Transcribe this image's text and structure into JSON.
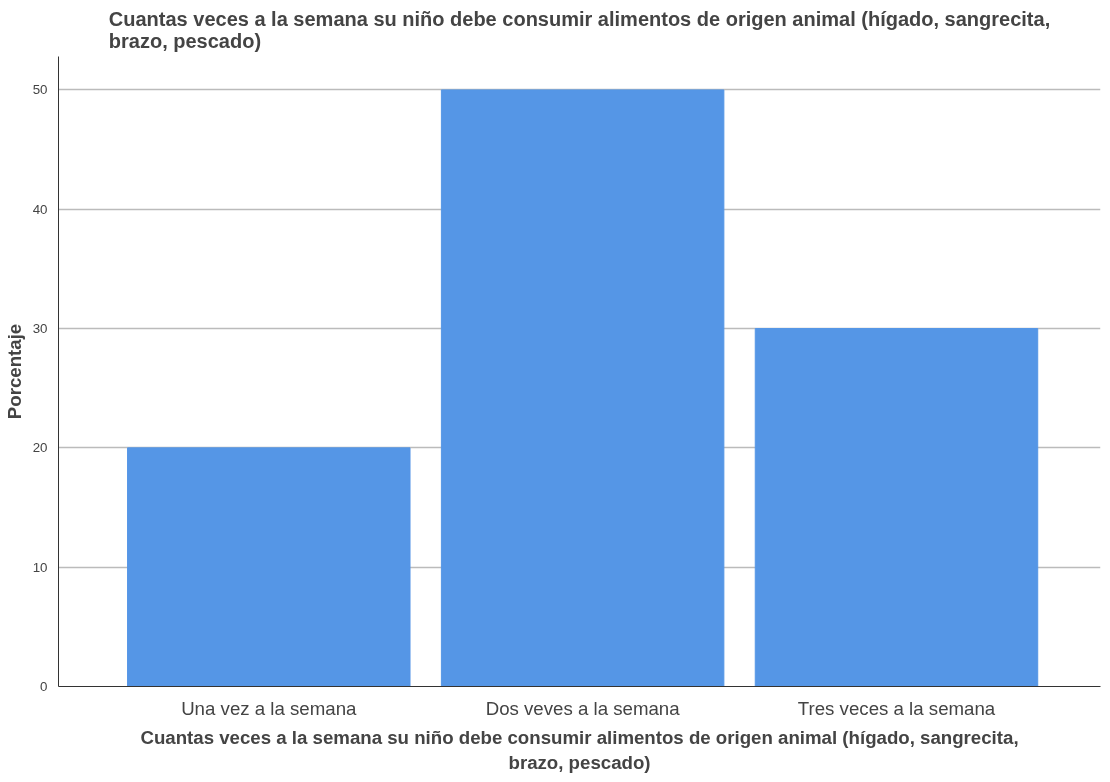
{
  "chart_data": {
    "type": "bar",
    "title": "Cuantas veces a la semana su niño debe consumir alimentos de origen animal (hígado, sangrecita, brazo, pescado)",
    "xlabel": "Cuantas veces a la semana su niño debe consumir alimentos de origen animal (hígado, sangrecita, brazo, pescado)",
    "ylabel": "Porcentaje",
    "categories": [
      "Una vez a la semana",
      "Dos veves a la semana",
      "Tres veces a la semana"
    ],
    "values": [
      20,
      50,
      30
    ],
    "color": "#5596e6",
    "ylim": [
      0,
      52.8
    ],
    "yticks": [
      0,
      10,
      20,
      30,
      40,
      50
    ],
    "grid": "y"
  }
}
